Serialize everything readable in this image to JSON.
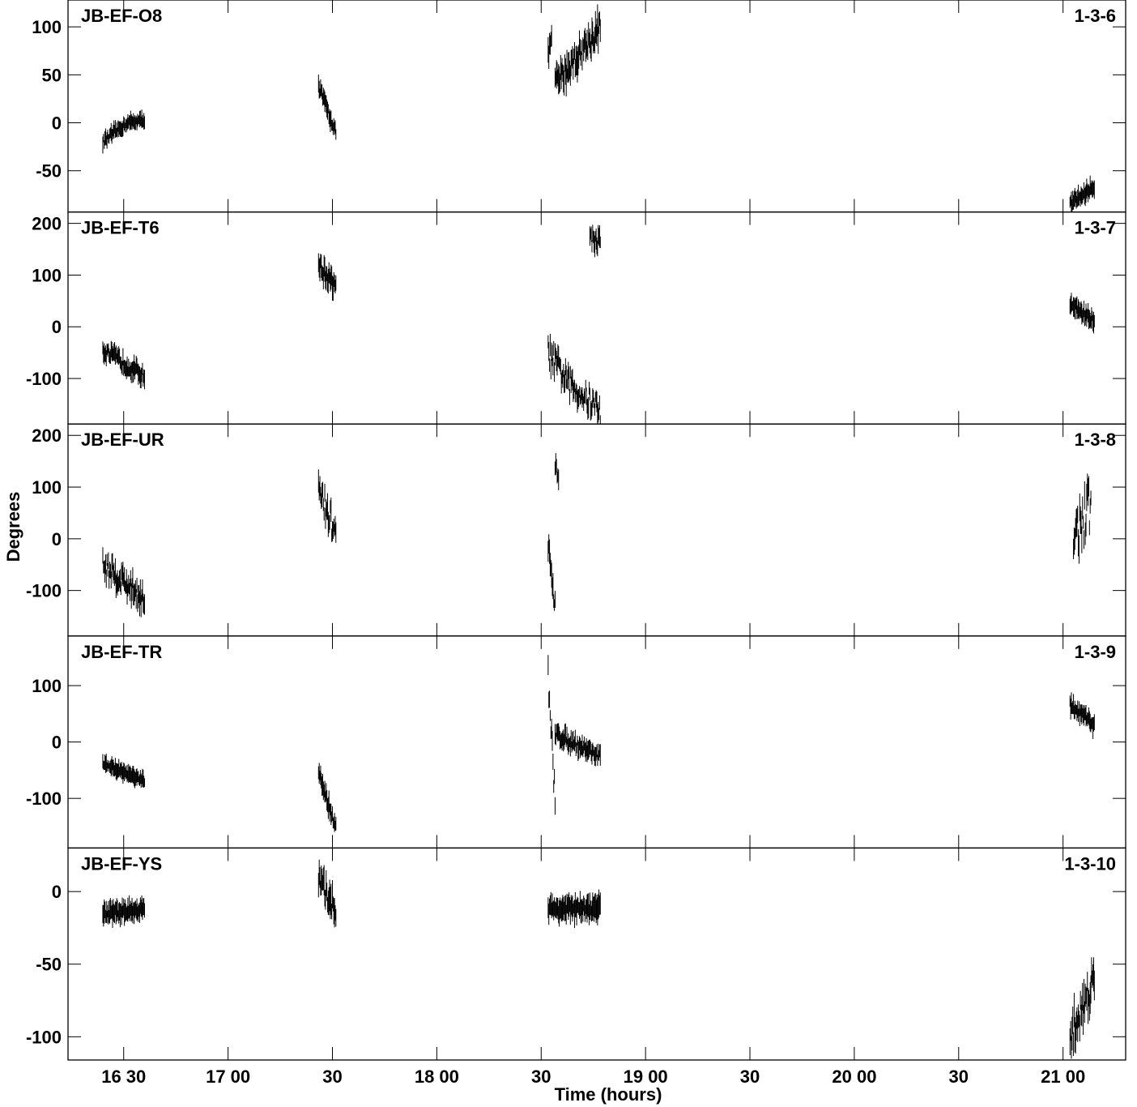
{
  "chart_data": {
    "type": "scatter",
    "marker": "vertical error bars",
    "grid": false,
    "ylabel": "Degrees",
    "xlabel": "Time (hours)",
    "xlim": [
      "16:14",
      "21:18"
    ],
    "x_ticks": [
      {
        "t": "16:30",
        "label": "16 30"
      },
      {
        "t": "17:00",
        "label": "17 00"
      },
      {
        "t": "17:30",
        "label": "30"
      },
      {
        "t": "18:00",
        "label": "18 00"
      },
      {
        "t": "18:30",
        "label": "30"
      },
      {
        "t": "19:00",
        "label": "19 00"
      },
      {
        "t": "19:30",
        "label": "30"
      },
      {
        "t": "20:00",
        "label": "20 00"
      },
      {
        "t": "20:30",
        "label": "30"
      },
      {
        "t": "21:00",
        "label": "21 00"
      }
    ],
    "panels": [
      {
        "baseline": "JB-EF-O8",
        "code": "1-3-6",
        "ylim": [
          -93,
          128
        ],
        "yticks": [
          100,
          50,
          0,
          -50
        ],
        "segments": [
          {
            "start": "16:24",
            "end": "16:31",
            "y0": -20,
            "y1": 0,
            "noise": 4,
            "err": 7
          },
          {
            "start": "16:31",
            "end": "16:36",
            "y0": 0,
            "y1": 3,
            "noise": 3,
            "err": 7
          },
          {
            "start": "17:26",
            "end": "17:31",
            "y0": 38,
            "y1": -10,
            "noise": 5,
            "err": 8
          },
          {
            "start": "18:32",
            "end": "18:33",
            "y0": 70,
            "y1": 90,
            "noise": 6,
            "err": 10
          },
          {
            "start": "18:34",
            "end": "18:47",
            "y0": 40,
            "y1": 100,
            "noise": 12,
            "err": 12
          }
        ],
        "tail": {
          "start": "21:02",
          "end": "21:09",
          "y0": -85,
          "y1": -66,
          "noise": 4,
          "err": 8
        }
      },
      {
        "baseline": "JB-EF-T6",
        "code": "1-3-7",
        "ylim": [
          -188,
          222
        ],
        "yticks": [
          200,
          100,
          0,
          -100
        ],
        "segments": [
          {
            "start": "16:24",
            "end": "16:36",
            "y0": -45,
            "y1": -95,
            "noise": 12,
            "err": 15
          },
          {
            "start": "17:26",
            "end": "17:31",
            "y0": 120,
            "y1": 75,
            "noise": 14,
            "err": 18
          },
          {
            "start": "18:32",
            "end": "18:38",
            "y0": -50,
            "y1": -110,
            "noise": 25,
            "err": 16
          },
          {
            "start": "18:38",
            "end": "18:47",
            "y0": -110,
            "y1": -160,
            "noise": 25,
            "err": 16
          },
          {
            "start": "18:44",
            "end": "18:47",
            "y0": 170,
            "y1": 165,
            "noise": 15,
            "err": 16
          }
        ],
        "tail": {
          "start": "21:02",
          "end": "21:09",
          "y0": 45,
          "y1": 10,
          "noise": 10,
          "err": 15
        }
      },
      {
        "baseline": "JB-EF-UR",
        "code": "1-3-8",
        "ylim": [
          -188,
          222
        ],
        "yticks": [
          200,
          100,
          0,
          -100
        ],
        "segments": [
          {
            "start": "16:24",
            "end": "16:36",
            "y0": -50,
            "y1": -115,
            "noise": 22,
            "err": 18
          },
          {
            "start": "17:26",
            "end": "17:31",
            "y0": 90,
            "y1": 10,
            "noise": 30,
            "err": 20
          },
          {
            "start": "18:32",
            "end": "18:34",
            "y0": -20,
            "y1": -140,
            "noise": 25,
            "err": 18
          },
          {
            "start": "18:34",
            "end": "18:35",
            "y0": 140,
            "y1": 120,
            "noise": 10,
            "err": 15
          }
        ],
        "tail": {
          "start": "21:03",
          "end": "21:08",
          "y0": 0,
          "y1": 70,
          "noise": 45,
          "err": 20
        }
      },
      {
        "baseline": "JB-EF-TR",
        "code": "1-3-9",
        "ylim": [
          -188,
          188
        ],
        "yticks": [
          100,
          0,
          -100
        ],
        "segments": [
          {
            "start": "16:24",
            "end": "16:36",
            "y0": -38,
            "y1": -70,
            "noise": 5,
            "err": 12
          },
          {
            "start": "17:26",
            "end": "17:31",
            "y0": -55,
            "y1": -150,
            "noise": 10,
            "err": 14
          },
          {
            "start": "18:32",
            "end": "18:34",
            "y0": 110,
            "y1": -110,
            "noise": 30,
            "err": 15
          },
          {
            "start": "18:34",
            "end": "18:47",
            "y0": 15,
            "y1": -25,
            "noise": 10,
            "err": 14
          }
        ],
        "tail": {
          "start": "21:02",
          "end": "21:09",
          "y0": 65,
          "y1": 30,
          "noise": 8,
          "err": 14
        }
      },
      {
        "baseline": "JB-EF-YS",
        "code": "1-3-10",
        "ylim": [
          -116,
          30
        ],
        "yticks": [
          0,
          -50,
          -100
        ],
        "segments": [
          {
            "start": "16:24",
            "end": "16:36",
            "y0": -15,
            "y1": -12,
            "noise": 3,
            "err": 6
          },
          {
            "start": "17:26",
            "end": "17:31",
            "y0": 8,
            "y1": -12,
            "noise": 7,
            "err": 8
          },
          {
            "start": "18:32",
            "end": "18:47",
            "y0": -12,
            "y1": -12,
            "noise": 4,
            "err": 7
          }
        ],
        "tail": {
          "start": "21:02",
          "end": "21:09",
          "y0": -100,
          "y1": -60,
          "noise": 12,
          "err": 9
        }
      }
    ]
  }
}
